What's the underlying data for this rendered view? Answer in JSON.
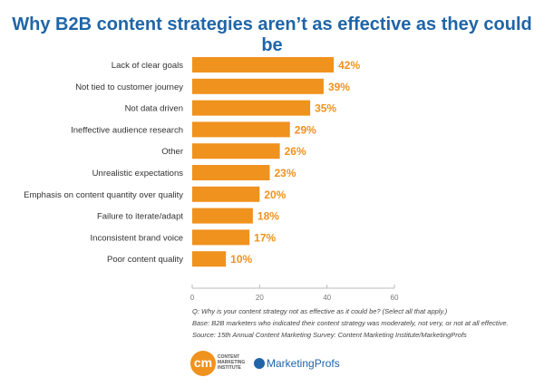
{
  "chart_data": {
    "type": "bar",
    "orientation": "horizontal",
    "title": "Why B2B content strategies aren’t as effective as they could be",
    "categories": [
      "Lack of clear goals",
      "Not tied to customer journey",
      "Not data driven",
      "Ineffective audience research",
      "Other",
      "Unrealistic expectations",
      "Emphasis on content quantity over quality",
      "Failure to iterate/adapt",
      "Inconsistent brand voice",
      "Poor content quality"
    ],
    "values": [
      42,
      39,
      35,
      29,
      26,
      23,
      20,
      18,
      17,
      10
    ],
    "data_labels": [
      "42%",
      "39%",
      "35%",
      "29%",
      "26%",
      "23%",
      "20%",
      "18%",
      "17%",
      "10%"
    ],
    "xlim": [
      0,
      60
    ],
    "xticks": [
      "0",
      "20",
      "40",
      "60"
    ],
    "grid": false,
    "bar_color": "#f0921e",
    "label_color": "#f0921e"
  },
  "notes": {
    "question": "Q: Why is your content strategy not as effective as it could be? (Select all that apply.)",
    "base": "Base: B2B marketers who indicated their content strategy was moderately, not very, or not at all effective.",
    "source": "Source: 15th Annual Content Marketing Survey: Content Marketing Institute/MarketingProfs"
  },
  "logos": {
    "cmi_mark": "cm",
    "cmi_name": "CONTENT MARKETING INSTITUTE",
    "marketingprofs": "MarketingProfs"
  }
}
